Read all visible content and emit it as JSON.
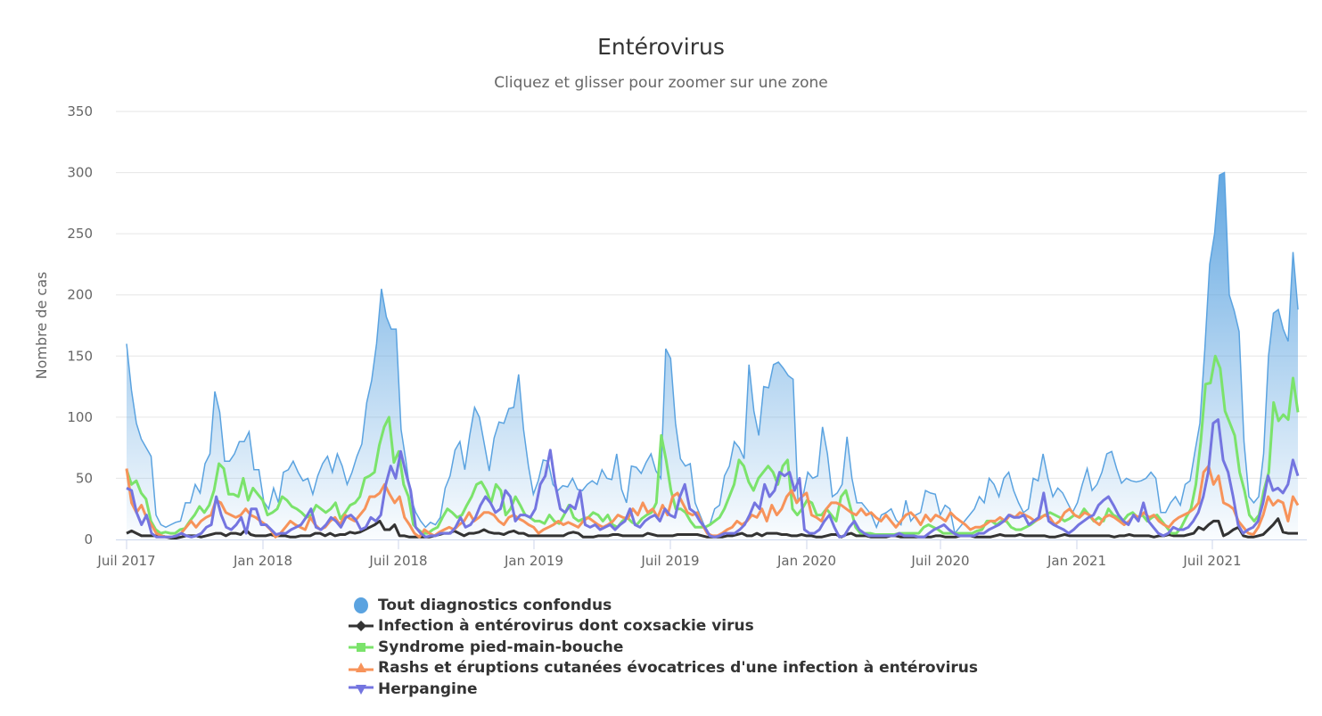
{
  "chart_data": {
    "type": "area+line",
    "title": "Entérovirus",
    "subtitle": "Cliquez et glisser pour zoomer sur une zone",
    "xlabel": "",
    "ylabel": "Nombre de cas",
    "ylim": [
      0,
      350
    ],
    "yticks": [
      0,
      50,
      100,
      150,
      200,
      250,
      300,
      350
    ],
    "xticks": [
      "Juil 2017",
      "Jan 2018",
      "Juil 2018",
      "Jan 2019",
      "Juil 2019",
      "Jan 2020",
      "Juil 2020",
      "Jan 2021",
      "Juil 2021"
    ],
    "x_interval": "weekly",
    "grid": true,
    "legend_position": "bottom",
    "series": [
      {
        "name": "Tout diagnostics confondus",
        "color": "#5ba3e0",
        "type": "area",
        "marker": "circle",
        "values": [
          160,
          122,
          95,
          82,
          75,
          68,
          20,
          12,
          10,
          12,
          14,
          15,
          30,
          30,
          45,
          38,
          62,
          70,
          121,
          104,
          64,
          64,
          70,
          80,
          80,
          88,
          57,
          57,
          31,
          25,
          42,
          30,
          55,
          57,
          64,
          55,
          48,
          50,
          37,
          52,
          62,
          68,
          55,
          70,
          60,
          45,
          55,
          68,
          78,
          112,
          130,
          160,
          205,
          182,
          172,
          172,
          90,
          64,
          34,
          22,
          15,
          10,
          14,
          12,
          18,
          42,
          52,
          73,
          80,
          57,
          85,
          108,
          100,
          78,
          56,
          83,
          96,
          95,
          107,
          108,
          135,
          90,
          60,
          37,
          48,
          65,
          64,
          45,
          40,
          44,
          43,
          50,
          41,
          40,
          45,
          48,
          45,
          57,
          50,
          49,
          70,
          41,
          30,
          60,
          59,
          54,
          63,
          70,
          56,
          50,
          156,
          148,
          95,
          66,
          60,
          62,
          30,
          20,
          10,
          12,
          25,
          28,
          52,
          60,
          80,
          75,
          66,
          143,
          105,
          85,
          125,
          124,
          143,
          145,
          140,
          134,
          131,
          31,
          35,
          55,
          50,
          52,
          92,
          70,
          35,
          38,
          45,
          84,
          50,
          30,
          30,
          25,
          20,
          10,
          20,
          22,
          25,
          16,
          12,
          32,
          15,
          20,
          22,
          40,
          38,
          37,
          20,
          28,
          25,
          5,
          10,
          15,
          20,
          25,
          35,
          30,
          50,
          45,
          35,
          50,
          55,
          40,
          30,
          22,
          25,
          50,
          48,
          70,
          50,
          35,
          42,
          38,
          30,
          22,
          30,
          45,
          58,
          40,
          45,
          55,
          70,
          72,
          58,
          46,
          50,
          48,
          47,
          48,
          50,
          55,
          50,
          22,
          22,
          30,
          35,
          28,
          45,
          48,
          72,
          95,
          155,
          225,
          250,
          298,
          300,
          200,
          187,
          170,
          80,
          35,
          30,
          35,
          70,
          150,
          185,
          188,
          172,
          162,
          235,
          188
        ]
      },
      {
        "name": "Infection à entérovirus dont coxsackie virus",
        "color": "#333333",
        "type": "line",
        "marker": "diamond",
        "values": [
          5,
          7,
          5,
          3,
          3,
          3,
          3,
          3,
          2,
          1,
          1,
          2,
          3,
          3,
          3,
          2,
          3,
          4,
          5,
          5,
          3,
          5,
          5,
          4,
          8,
          4,
          3,
          3,
          3,
          4,
          3,
          3,
          3,
          2,
          2,
          3,
          3,
          3,
          5,
          5,
          3,
          5,
          3,
          4,
          4,
          6,
          5,
          6,
          8,
          10,
          12,
          15,
          8,
          8,
          12,
          3,
          3,
          2,
          2,
          2,
          2,
          2,
          3,
          4,
          5,
          5,
          7,
          5,
          3,
          5,
          5,
          6,
          8,
          6,
          5,
          5,
          4,
          6,
          7,
          5,
          5,
          3,
          3,
          3,
          3,
          3,
          3,
          3,
          3,
          5,
          6,
          5,
          2,
          2,
          2,
          3,
          3,
          3,
          4,
          4,
          3,
          3,
          3,
          3,
          3,
          5,
          4,
          3,
          3,
          3,
          3,
          4,
          4,
          4,
          4,
          4,
          3,
          2,
          2,
          2,
          2,
          3,
          3,
          4,
          5,
          3,
          3,
          5,
          3,
          5,
          5,
          5,
          4,
          4,
          3,
          3,
          4,
          3,
          3,
          2,
          2,
          3,
          4,
          4,
          2,
          4,
          5,
          3,
          3,
          3,
          2,
          2,
          2,
          2,
          3,
          3,
          2,
          2,
          2,
          2,
          2,
          2,
          2,
          3,
          3,
          2,
          2,
          2,
          3,
          3,
          3,
          2,
          2,
          2,
          2,
          3,
          4,
          3,
          3,
          3,
          4,
          3,
          3,
          3,
          3,
          3,
          2,
          2,
          3,
          4,
          3,
          3,
          3,
          3,
          3,
          3,
          3,
          3,
          3,
          2,
          3,
          3,
          4,
          3,
          3,
          3,
          3,
          2,
          3,
          3,
          4,
          3,
          3,
          3,
          4,
          5,
          10,
          8,
          12,
          15,
          15,
          3,
          5,
          8,
          10,
          3,
          2,
          2,
          3,
          4,
          8,
          12,
          17,
          6,
          5,
          5,
          5
        ]
      },
      {
        "name": "Syndrome pied-main-bouche",
        "color": "#7be36b",
        "type": "line",
        "marker": "square",
        "values": [
          57,
          45,
          48,
          38,
          33,
          15,
          8,
          5,
          6,
          5,
          5,
          8,
          9,
          15,
          20,
          27,
          22,
          28,
          40,
          62,
          58,
          37,
          37,
          35,
          50,
          32,
          42,
          37,
          32,
          20,
          22,
          25,
          35,
          32,
          27,
          25,
          22,
          18,
          20,
          28,
          25,
          22,
          25,
          30,
          17,
          22,
          28,
          30,
          35,
          50,
          52,
          55,
          77,
          92,
          100,
          63,
          72,
          45,
          35,
          12,
          8,
          5,
          5,
          8,
          10,
          18,
          25,
          22,
          18,
          20,
          28,
          35,
          45,
          47,
          40,
          30,
          45,
          40,
          20,
          25,
          35,
          28,
          20,
          18,
          15,
          15,
          13,
          20,
          15,
          13,
          20,
          28,
          18,
          15,
          17,
          18,
          22,
          20,
          15,
          20,
          12,
          10,
          15,
          18,
          14,
          12,
          17,
          20,
          22,
          30,
          85,
          65,
          40,
          25,
          25,
          22,
          15,
          10,
          10,
          10,
          12,
          15,
          18,
          25,
          35,
          45,
          65,
          60,
          47,
          40,
          50,
          55,
          60,
          55,
          45,
          60,
          65,
          25,
          20,
          25,
          32,
          30,
          20,
          20,
          25,
          20,
          15,
          35,
          40,
          25,
          10,
          5,
          5,
          5,
          4,
          4,
          4,
          4,
          4,
          5,
          5,
          5,
          5,
          5,
          10,
          12,
          10,
          8,
          5,
          5,
          5,
          5,
          5,
          5,
          5,
          7,
          8,
          15,
          15,
          12,
          15,
          15,
          10,
          8,
          8,
          10,
          12,
          15,
          18,
          20,
          22,
          20,
          18,
          15,
          17,
          20,
          18,
          25,
          20,
          15,
          18,
          15,
          25,
          20,
          18,
          15,
          20,
          22,
          18,
          20,
          15,
          18,
          20,
          15,
          10,
          5,
          5,
          10,
          18,
          25,
          45,
          80,
          127,
          128,
          150,
          140,
          105,
          95,
          85,
          55,
          40,
          20,
          15,
          20,
          40,
          55,
          112,
          97,
          102,
          98,
          132,
          104
        ]
      },
      {
        "name": "Rashs et éruptions cutanées évocatrices d'une infection à entérovirus",
        "color": "#f7935a",
        "type": "line",
        "marker": "triangle",
        "values": [
          58,
          30,
          22,
          28,
          18,
          12,
          5,
          3,
          2,
          2,
          3,
          5,
          10,
          15,
          10,
          15,
          18,
          20,
          32,
          30,
          22,
          20,
          18,
          20,
          25,
          20,
          18,
          15,
          12,
          8,
          2,
          5,
          10,
          15,
          12,
          10,
          8,
          18,
          12,
          8,
          10,
          15,
          18,
          12,
          20,
          17,
          15,
          20,
          25,
          35,
          35,
          38,
          45,
          37,
          30,
          35,
          18,
          12,
          5,
          2,
          8,
          5,
          3,
          6,
          8,
          10,
          8,
          12,
          15,
          22,
          15,
          18,
          22,
          22,
          20,
          15,
          12,
          18,
          20,
          17,
          15,
          12,
          10,
          5,
          8,
          10,
          12,
          15,
          12,
          14,
          12,
          10,
          15,
          18,
          15,
          12,
          10,
          12,
          15,
          20,
          18,
          17,
          25,
          20,
          30,
          22,
          25,
          18,
          28,
          20,
          35,
          38,
          30,
          22,
          20,
          22,
          12,
          5,
          3,
          3,
          5,
          8,
          10,
          15,
          12,
          15,
          20,
          18,
          25,
          15,
          28,
          20,
          25,
          35,
          40,
          30,
          35,
          38,
          20,
          18,
          15,
          25,
          30,
          30,
          28,
          25,
          22,
          20,
          25,
          20,
          22,
          18,
          15,
          20,
          15,
          10,
          15,
          20,
          22,
          18,
          12,
          20,
          15,
          20,
          18,
          15,
          22,
          18,
          15,
          12,
          8,
          10,
          10,
          12,
          15,
          15,
          18,
          15,
          20,
          18,
          22,
          20,
          18,
          15,
          17,
          20,
          18,
          12,
          15,
          22,
          25,
          20,
          18,
          22,
          20,
          15,
          12,
          18,
          20,
          18,
          15,
          12,
          15,
          20,
          18,
          22,
          18,
          20,
          15,
          12,
          10,
          15,
          18,
          20,
          22,
          25,
          30,
          55,
          60,
          45,
          52,
          30,
          28,
          25,
          15,
          10,
          5,
          4,
          10,
          20,
          35,
          28,
          32,
          30,
          15,
          35,
          28
        ]
      },
      {
        "name": "Herpangine",
        "color": "#7475e0",
        "type": "line",
        "marker": "triangle-down",
        "values": [
          42,
          40,
          22,
          12,
          20,
          5,
          2,
          2,
          2,
          2,
          3,
          5,
          3,
          2,
          3,
          5,
          10,
          12,
          35,
          20,
          10,
          8,
          12,
          18,
          5,
          25,
          25,
          12,
          12,
          8,
          4,
          5,
          5,
          8,
          10,
          12,
          18,
          25,
          10,
          8,
          12,
          18,
          15,
          10,
          18,
          20,
          16,
          8,
          10,
          18,
          15,
          20,
          45,
          60,
          50,
          72,
          55,
          40,
          10,
          5,
          2,
          3,
          3,
          5,
          5,
          5,
          10,
          18,
          10,
          12,
          18,
          28,
          35,
          30,
          22,
          25,
          40,
          35,
          15,
          20,
          20,
          18,
          25,
          45,
          52,
          73,
          45,
          25,
          22,
          28,
          25,
          40,
          12,
          10,
          12,
          8,
          10,
          12,
          8,
          12,
          15,
          25,
          12,
          10,
          15,
          18,
          20,
          15,
          25,
          20,
          18,
          35,
          45,
          25,
          22,
          15,
          10,
          3,
          2,
          3,
          5,
          5,
          5,
          8,
          12,
          20,
          30,
          25,
          45,
          35,
          40,
          55,
          52,
          55,
          40,
          50,
          8,
          5,
          5,
          8,
          15,
          20,
          10,
          2,
          3,
          10,
          15,
          8,
          5,
          3,
          3,
          3,
          3,
          3,
          3,
          5,
          3,
          3,
          3,
          2,
          2,
          5,
          8,
          10,
          12,
          8,
          5,
          3,
          3,
          3,
          3,
          5,
          5,
          8,
          10,
          12,
          15,
          20,
          18,
          18,
          20,
          12,
          15,
          18,
          38,
          15,
          12,
          10,
          8,
          5,
          8,
          12,
          15,
          18,
          20,
          28,
          32,
          35,
          28,
          20,
          15,
          12,
          20,
          15,
          30,
          15,
          10,
          5,
          3,
          5,
          10,
          8,
          8,
          10,
          15,
          22,
          35,
          55,
          95,
          98,
          65,
          55,
          35,
          12,
          5,
          8,
          10,
          15,
          30,
          52,
          40,
          42,
          38,
          45,
          65,
          52
        ]
      }
    ]
  },
  "header": {
    "title": "Entérovirus",
    "subtitle": "Cliquez et glisser pour zoomer sur une zone"
  },
  "axes": {
    "ylabel": "Nombre de cas",
    "yticks": [
      "0",
      "50",
      "100",
      "150",
      "200",
      "250",
      "300",
      "350"
    ],
    "xticks": [
      "Juil 2017",
      "Jan 2018",
      "Juil 2018",
      "Jan 2019",
      "Juil 2019",
      "Jan 2020",
      "Juil 2020",
      "Jan 2021",
      "Juil 2021"
    ]
  },
  "legend": {
    "items": [
      {
        "label": "Tout diagnostics confondus",
        "color": "#5ba3e0",
        "symbol": "circle-icon"
      },
      {
        "label": "Infection à entérovirus dont coxsackie virus",
        "color": "#333333",
        "symbol": "diamond-icon"
      },
      {
        "label": "Syndrome pied-main-bouche",
        "color": "#7be36b",
        "symbol": "square-icon"
      },
      {
        "label": "Rashs et éruptions cutanées évocatrices d'une infection à entérovirus",
        "color": "#f7935a",
        "symbol": "triangle-icon"
      },
      {
        "label": "Herpangine",
        "color": "#7475e0",
        "symbol": "triangle-down-icon"
      }
    ]
  }
}
